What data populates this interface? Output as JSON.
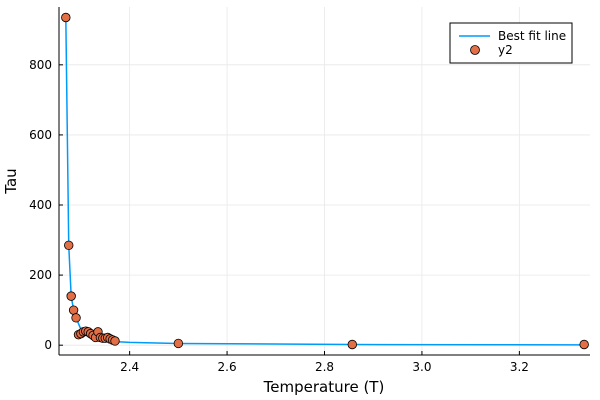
{
  "chart_data": {
    "type": "scatter",
    "title": "",
    "xlabel": "Temperature (T)",
    "ylabel": "Tau",
    "xlim": [
      2.255,
      3.345
    ],
    "ylim": [
      -28,
      965
    ],
    "xticks": [
      2.4,
      2.6,
      2.8,
      3.0,
      3.2
    ],
    "xtick_labels": [
      "2.4",
      "2.6",
      "2.8",
      "3.0",
      "3.2"
    ],
    "yticks": [
      0,
      200,
      400,
      600,
      800
    ],
    "ytick_labels": [
      "0",
      "200",
      "400",
      "600",
      "800"
    ],
    "grid": true,
    "legend_position": "top-right",
    "series": [
      {
        "name": "Best fit line",
        "kind": "line",
        "color": "#009af9",
        "points": [
          [
            2.269,
            935
          ],
          [
            2.275,
            285
          ],
          [
            2.28,
            140
          ],
          [
            2.285,
            100
          ],
          [
            2.29,
            78
          ],
          [
            2.3,
            45
          ],
          [
            2.31,
            32
          ],
          [
            2.32,
            24
          ],
          [
            2.33,
            20
          ],
          [
            2.34,
            17
          ],
          [
            2.35,
            14
          ],
          [
            2.36,
            12
          ],
          [
            2.37,
            10
          ],
          [
            2.4,
            8
          ],
          [
            2.5,
            5
          ],
          [
            2.857,
            1.8
          ],
          [
            3.333,
            1
          ]
        ]
      },
      {
        "name": "y2",
        "kind": "scatter",
        "color": "#e26f46",
        "points": [
          [
            2.269,
            935
          ],
          [
            2.275,
            285
          ],
          [
            2.28,
            140
          ],
          [
            2.285,
            100
          ],
          [
            2.29,
            78
          ],
          [
            2.295,
            30
          ],
          [
            2.3,
            33
          ],
          [
            2.305,
            38
          ],
          [
            2.31,
            40
          ],
          [
            2.315,
            38
          ],
          [
            2.32,
            33
          ],
          [
            2.325,
            28
          ],
          [
            2.33,
            22
          ],
          [
            2.335,
            38
          ],
          [
            2.34,
            22
          ],
          [
            2.345,
            20
          ],
          [
            2.35,
            20
          ],
          [
            2.355,
            22
          ],
          [
            2.36,
            18
          ],
          [
            2.365,
            15
          ],
          [
            2.37,
            12
          ],
          [
            2.5,
            5
          ],
          [
            2.857,
            2
          ],
          [
            3.333,
            2
          ]
        ]
      }
    ]
  }
}
